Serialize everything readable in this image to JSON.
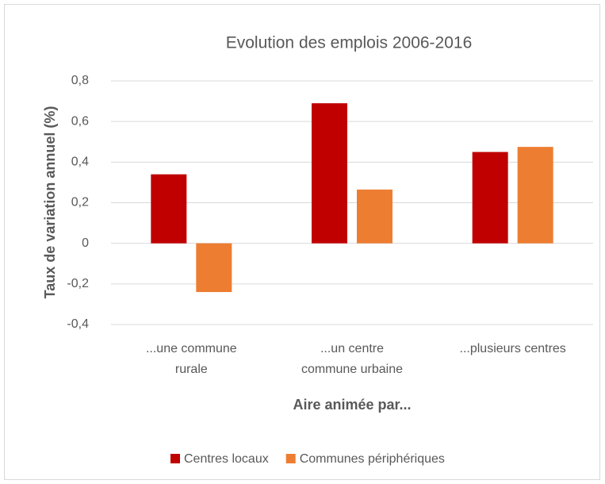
{
  "chart_data": {
    "type": "bar",
    "title": "Evolution des emplois 2006-2016",
    "x_label": "Aire animée par...",
    "y_label": "Taux de variation annuel (%)",
    "categories": [
      "...une commune\nrurale",
      "...un centre\ncommune urbaine",
      "...plusieurs centres"
    ],
    "series": [
      {
        "name": "Centres locaux",
        "color": "#c00000",
        "values": [
          0.34,
          0.69,
          0.45
        ]
      },
      {
        "name": "Communes périphériques",
        "color": "#ed7d31",
        "values": [
          -0.24,
          0.265,
          0.475
        ]
      }
    ],
    "ylim": [
      -0.4,
      0.8
    ],
    "yticks": [
      {
        "value": -0.4,
        "label": "-0,4"
      },
      {
        "value": -0.2,
        "label": "-0,2"
      },
      0,
      {
        "value": 0.2,
        "label": "0,2"
      },
      {
        "value": 0.4,
        "label": "0,4"
      },
      {
        "value": 0.6,
        "label": "0,6"
      },
      {
        "value": 0.8,
        "label": "0,8"
      }
    ],
    "grid": true,
    "legend": "bottom"
  }
}
